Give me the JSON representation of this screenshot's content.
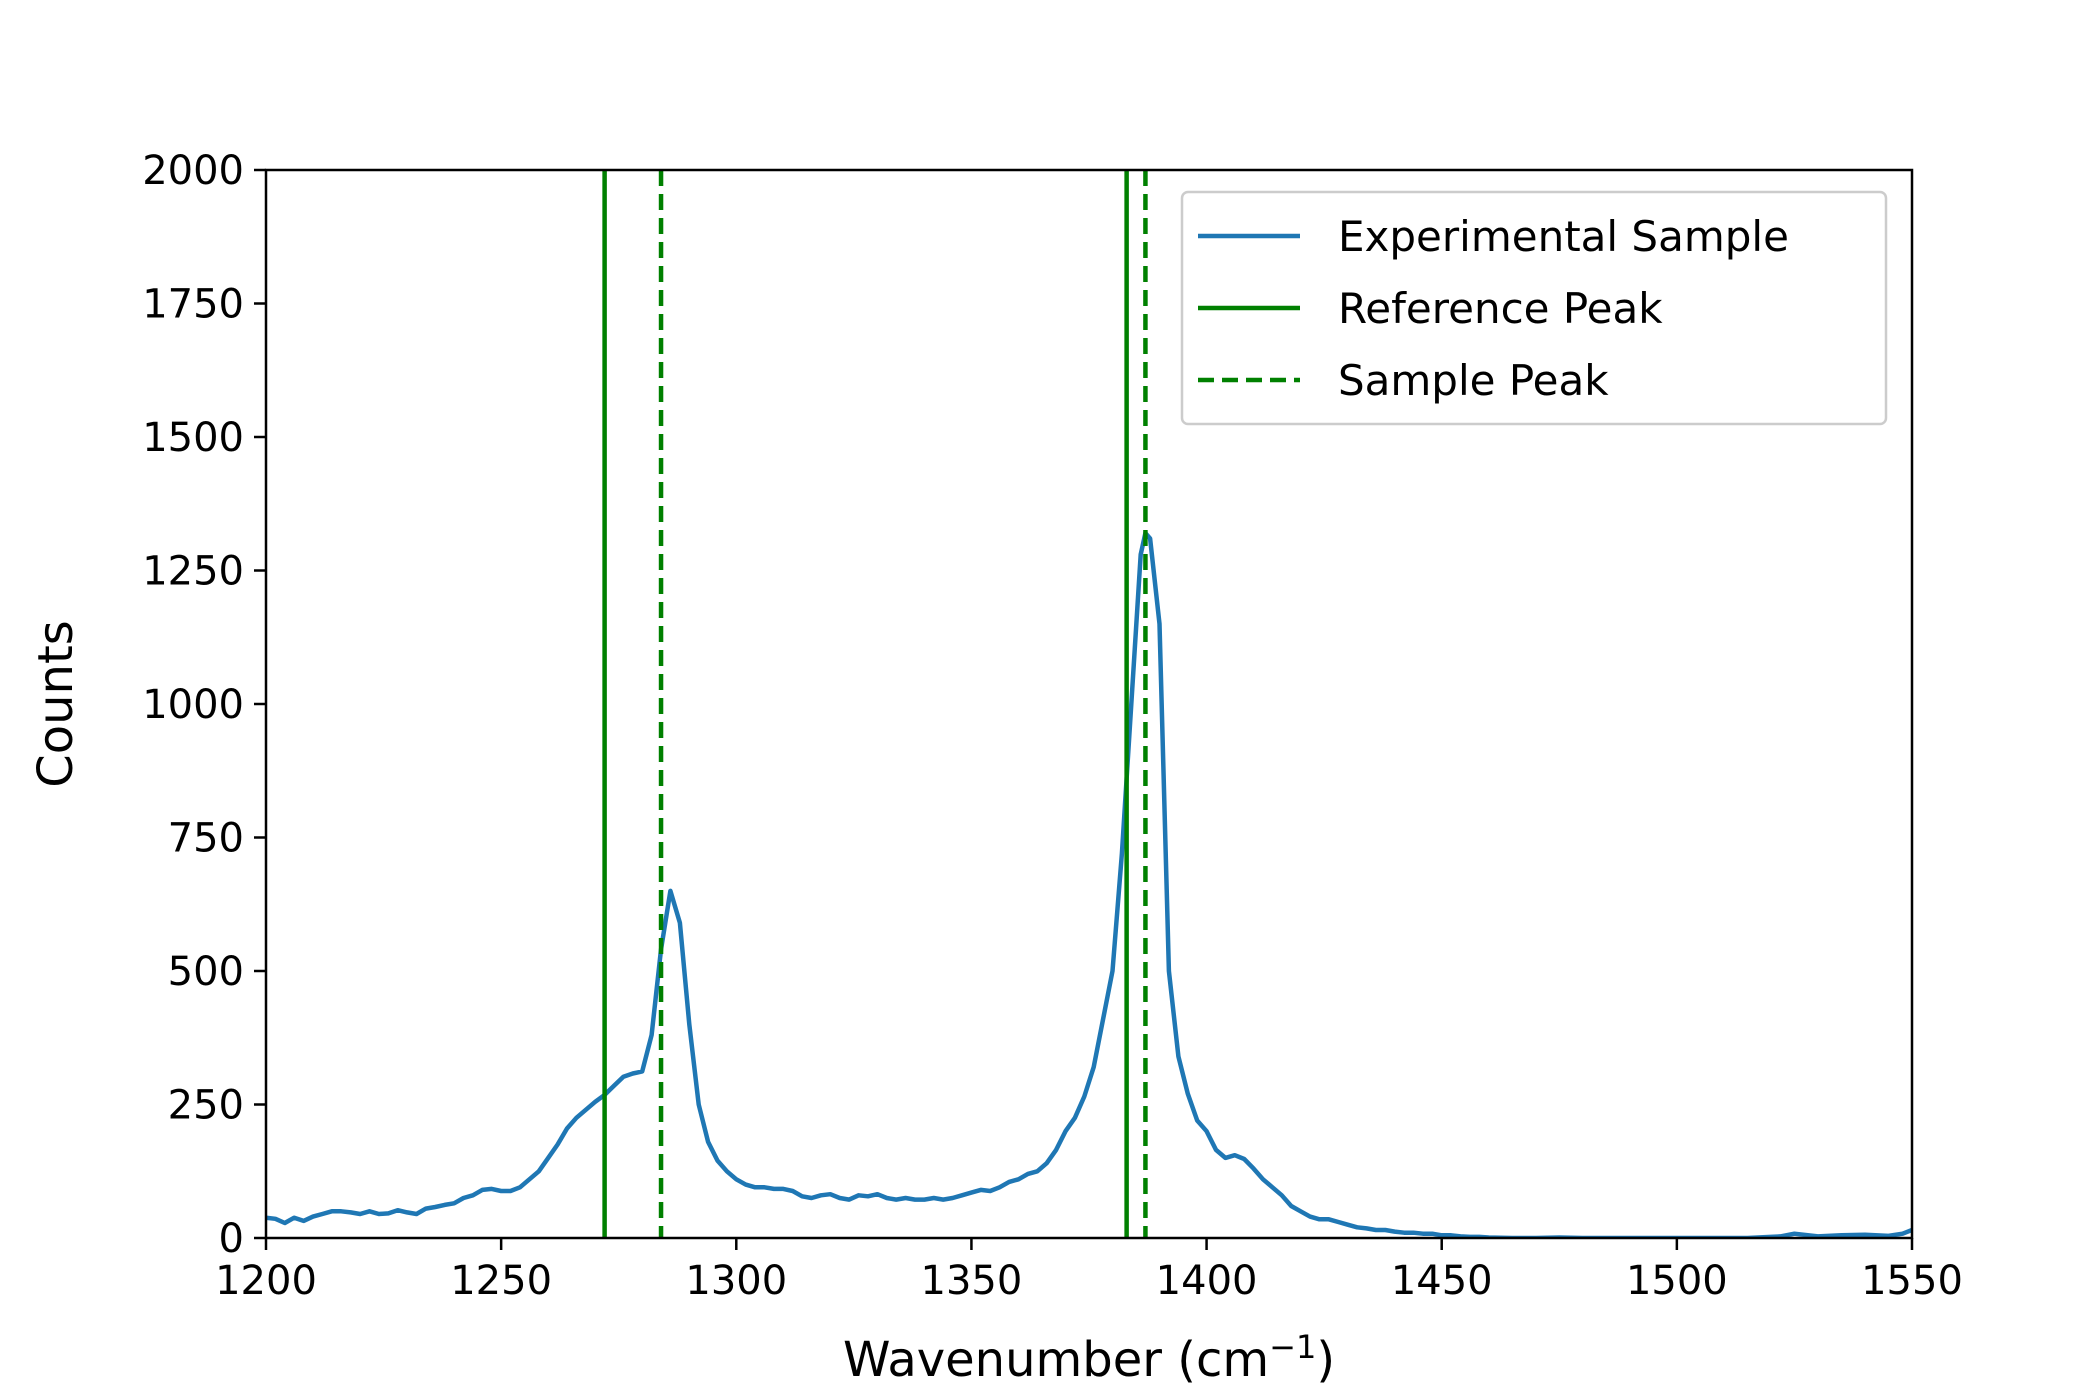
{
  "chart_data": {
    "type": "line",
    "title": "",
    "xlabel": "Wavenumber (cm",
    "xlabel_sup": "−1",
    "xlabel_suffix": ")",
    "ylabel": "Counts",
    "xlim": [
      1200,
      1550
    ],
    "ylim": [
      0,
      2000
    ],
    "xticks": [
      "1200",
      "1250",
      "1300",
      "1350",
      "1400",
      "1450",
      "1500",
      "1550"
    ],
    "yticks": [
      "0",
      "250",
      "500",
      "750",
      "1000",
      "1250",
      "1500",
      "1750",
      "2000"
    ],
    "grid": false,
    "legend_position": "top-right",
    "legend": [
      {
        "label": "Experimental Sample",
        "style": "solid",
        "color": "#1f77b4"
      },
      {
        "label": "Reference Peak",
        "style": "solid",
        "color": "#008000"
      },
      {
        "label": "Sample Peak",
        "style": "dashed",
        "color": "#008000"
      }
    ],
    "series": [
      {
        "name": "Experimental Sample",
        "color": "#1f77b4",
        "x": [
          1200,
          1202,
          1204,
          1206,
          1208,
          1210,
          1212,
          1214,
          1216,
          1218,
          1220,
          1222,
          1224,
          1226,
          1228,
          1230,
          1232,
          1234,
          1236,
          1238,
          1240,
          1242,
          1244,
          1246,
          1248,
          1250,
          1252,
          1254,
          1256,
          1258,
          1260,
          1262,
          1264,
          1266,
          1268,
          1270,
          1272,
          1274,
          1276,
          1278,
          1280,
          1282,
          1284,
          1286,
          1288,
          1290,
          1292,
          1294,
          1296,
          1298,
          1300,
          1302,
          1304,
          1306,
          1308,
          1310,
          1312,
          1314,
          1316,
          1318,
          1320,
          1322,
          1324,
          1326,
          1328,
          1330,
          1332,
          1334,
          1336,
          1338,
          1340,
          1342,
          1344,
          1346,
          1348,
          1350,
          1352,
          1354,
          1356,
          1358,
          1360,
          1362,
          1364,
          1366,
          1368,
          1370,
          1372,
          1374,
          1376,
          1378,
          1380,
          1382,
          1384,
          1386,
          1387,
          1388,
          1390,
          1392,
          1394,
          1396,
          1398,
          1400,
          1402,
          1404,
          1406,
          1408,
          1410,
          1412,
          1414,
          1416,
          1418,
          1420,
          1422,
          1424,
          1426,
          1428,
          1430,
          1432,
          1434,
          1436,
          1438,
          1440,
          1442,
          1444,
          1446,
          1448,
          1450,
          1452,
          1454,
          1456,
          1458,
          1460,
          1465,
          1470,
          1475,
          1480,
          1485,
          1490,
          1495,
          1500,
          1505,
          1510,
          1515,
          1520,
          1522,
          1525,
          1530,
          1535,
          1540,
          1545,
          1548,
          1550
        ],
        "y": [
          38,
          36,
          28,
          38,
          32,
          40,
          45,
          50,
          50,
          48,
          45,
          50,
          45,
          46,
          52,
          48,
          45,
          55,
          58,
          62,
          65,
          75,
          80,
          90,
          92,
          88,
          88,
          95,
          110,
          125,
          150,
          175,
          205,
          225,
          240,
          255,
          268,
          285,
          302,
          308,
          312,
          380,
          540,
          650,
          590,
          400,
          250,
          180,
          145,
          125,
          110,
          100,
          95,
          95,
          92,
          92,
          88,
          78,
          75,
          80,
          82,
          75,
          72,
          80,
          78,
          82,
          75,
          72,
          75,
          72,
          72,
          75,
          72,
          75,
          80,
          85,
          90,
          88,
          95,
          105,
          110,
          120,
          125,
          140,
          165,
          200,
          225,
          265,
          320,
          410,
          500,
          720,
          1000,
          1280,
          1320,
          1310,
          1150,
          500,
          340,
          270,
          220,
          200,
          165,
          150,
          155,
          148,
          130,
          110,
          95,
          80,
          60,
          50,
          40,
          35,
          35,
          30,
          25,
          20,
          18,
          15,
          15,
          12,
          10,
          10,
          8,
          8,
          5,
          5,
          3,
          2,
          2,
          1,
          0,
          0,
          1,
          0,
          0,
          0,
          0,
          0,
          0,
          0,
          0,
          2,
          3,
          8,
          3,
          5,
          6,
          4,
          8,
          15
        ]
      }
    ],
    "reference_peaks": [
      1272,
      1383
    ],
    "sample_peaks": [
      1284,
      1387
    ]
  }
}
